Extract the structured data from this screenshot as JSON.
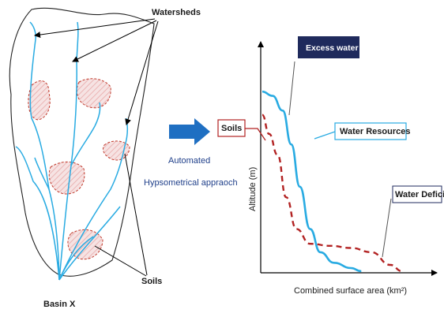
{
  "basin": {
    "label": "Basin X",
    "watersheds_label": "Watersheds",
    "soils_label": "Soils"
  },
  "process": {
    "line1": "Automated",
    "line2": "Hypsometrical appraoch"
  },
  "chart_data": {
    "type": "line",
    "xlabel": "Combined surface area (km²)",
    "ylabel": "Altitude (m)",
    "annotations": {
      "excess_water": "Excess water",
      "water_resources": "Water Resources",
      "soils": "Soils",
      "water_deficit": "Water Deficit"
    },
    "series": [
      {
        "name": "Water Resources",
        "style": "solid",
        "color": "#29abe2",
        "points": [
          [
            0.0,
            0.85
          ],
          [
            0.06,
            0.83
          ],
          [
            0.12,
            0.76
          ],
          [
            0.17,
            0.6
          ],
          [
            0.22,
            0.4
          ],
          [
            0.28,
            0.2
          ],
          [
            0.34,
            0.09
          ],
          [
            0.42,
            0.04
          ],
          [
            0.52,
            0.015
          ],
          [
            0.58,
            0.0
          ]
        ]
      },
      {
        "name": "Soils",
        "style": "dashed",
        "color": "#b22222",
        "points": [
          [
            0.0,
            0.74
          ],
          [
            0.04,
            0.65
          ],
          [
            0.09,
            0.55
          ],
          [
            0.14,
            0.35
          ],
          [
            0.2,
            0.2
          ],
          [
            0.28,
            0.13
          ],
          [
            0.4,
            0.12
          ],
          [
            0.52,
            0.11
          ],
          [
            0.64,
            0.09
          ],
          [
            0.75,
            0.03
          ],
          [
            0.82,
            0.0
          ]
        ]
      }
    ]
  },
  "colors": {
    "river": "#29abe2",
    "soil": "#c0392b",
    "arrow": "#1f6fc2",
    "dark_box": "#1f2a5c"
  }
}
